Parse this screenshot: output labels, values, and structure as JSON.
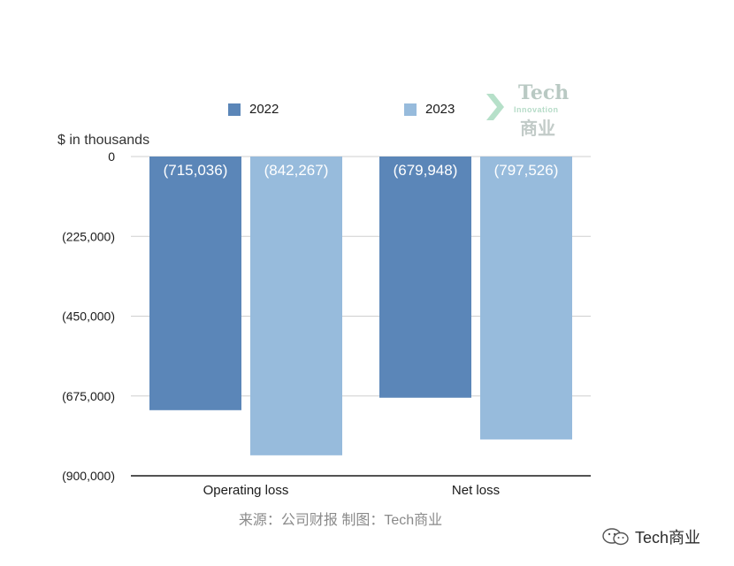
{
  "chart_data": {
    "type": "bar",
    "categories": [
      "Operating loss",
      "Net loss"
    ],
    "series": [
      {
        "name": "2022",
        "values": [
          -715036,
          -679948
        ],
        "labels": [
          "(715,036)",
          "(679,948)"
        ],
        "color": "#5b86b8"
      },
      {
        "name": "2023",
        "values": [
          -842267,
          -797526
        ],
        "labels": [
          "(842,267)",
          "(797,526)"
        ],
        "color": "#97bbdc"
      }
    ],
    "ylabel": "$ in thousands",
    "ylim": [
      -900000,
      0
    ],
    "yticks": [
      0,
      -225000,
      -450000,
      -675000,
      -900000
    ],
    "ytick_labels": [
      "0",
      "(225,000)",
      "(450,000)",
      "(675,000)",
      "(900,000)"
    ],
    "grid": true,
    "legend_position": "top"
  },
  "watermark": {
    "line1": "Tech",
    "line2": "Innovation",
    "line3": "商业"
  },
  "source_note": "来源：公司财报 制图：Tech商业",
  "brand": {
    "icon": "wechat-icon",
    "label": "Tech商业"
  }
}
